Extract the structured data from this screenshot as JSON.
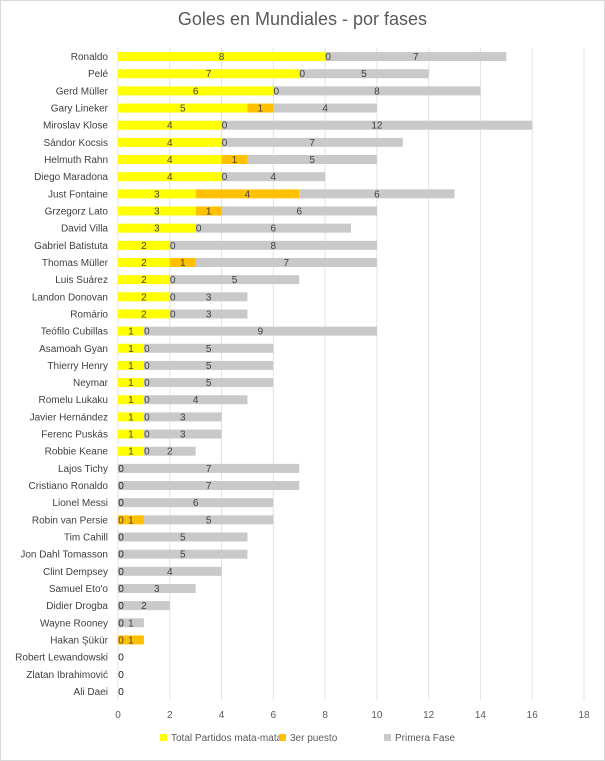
{
  "chart_data": {
    "type": "bar",
    "orientation": "horizontal",
    "stacked": true,
    "title": "Goles en Mundiales - por fases",
    "xlim": [
      0,
      18
    ],
    "xticks": [
      0,
      2,
      4,
      6,
      8,
      10,
      12,
      14,
      16,
      18
    ],
    "grid": true,
    "legend_position": "bottom",
    "categories": [
      "Ronaldo",
      "Pelé",
      "Gerd Müller",
      "Gary Lineker",
      "Miroslav Klose",
      "Sándor Kocsis",
      "Helmuth Rahn",
      "Diego Maradona",
      "Just Fontaine",
      "Grzegorz Lato",
      "David Villa",
      "Gabriel Batistuta",
      "Thomas Müller",
      "Luis Suárez",
      "Landon Donovan",
      "Romário",
      "Teófilo Cubillas",
      "Asamoah Gyan",
      "Thierry Henry",
      "Neymar",
      "Romelu Lukaku",
      "Javier Hernández",
      "Ferenc Puskás",
      "Robbie Keane",
      "Lajos Tichy",
      "Cristiano Ronaldo",
      "Lionel Messi",
      "Robin van Persie",
      "Tim Cahill",
      "Jon Dahl Tomasson",
      "Clint Dempsey",
      "Samuel Eto'o",
      "Didier Drogba",
      "Wayne Rooney",
      "Hakan Şükür",
      "Robert Lewandowski",
      "Zlatan Ibrahimović",
      "Ali Daei"
    ],
    "series": [
      {
        "name": "Total Partidos mata-mata",
        "color": "#ffff00",
        "values": [
          8,
          7,
          6,
          5,
          4,
          4,
          4,
          4,
          3,
          3,
          3,
          2,
          2,
          2,
          2,
          2,
          1,
          1,
          1,
          1,
          1,
          1,
          1,
          1,
          0,
          0,
          0,
          0,
          0,
          0,
          0,
          0,
          0,
          0,
          0,
          0,
          0,
          0
        ]
      },
      {
        "name": "3er puesto",
        "color": "#ffc000",
        "values": [
          0,
          0,
          0,
          1,
          0,
          0,
          1,
          0,
          4,
          1,
          0,
          0,
          1,
          0,
          0,
          0,
          0,
          0,
          0,
          0,
          0,
          0,
          0,
          0,
          0,
          0,
          0,
          1,
          0,
          0,
          0,
          0,
          0,
          0,
          1,
          0,
          0,
          0
        ]
      },
      {
        "name": "Primera Fase",
        "color": "#c9c9c9",
        "values": [
          7,
          5,
          8,
          4,
          12,
          7,
          5,
          4,
          6,
          6,
          6,
          8,
          7,
          5,
          3,
          3,
          9,
          5,
          5,
          5,
          4,
          3,
          3,
          2,
          7,
          7,
          6,
          5,
          5,
          5,
          4,
          3,
          2,
          1,
          0,
          0,
          0,
          0
        ]
      }
    ]
  }
}
